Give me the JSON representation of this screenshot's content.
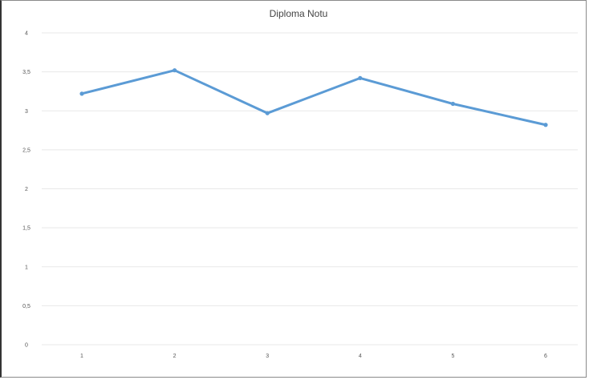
{
  "chart_data": {
    "type": "line",
    "title": "Diploma Notu",
    "xlabel": "",
    "ylabel": "",
    "categories": [
      "1",
      "2",
      "3",
      "4",
      "5",
      "6"
    ],
    "series": [
      {
        "values": [
          3.22,
          3.52,
          2.97,
          3.42,
          3.09,
          2.82
        ]
      }
    ],
    "ylim": [
      0,
      4
    ],
    "yticks": [
      0,
      0.5,
      1,
      1.5,
      2,
      2.5,
      3,
      3.5,
      4
    ],
    "yticklabels": [
      "0",
      "0,5",
      "1",
      "1,5",
      "2",
      "2,5",
      "3",
      "3,5",
      "4"
    ],
    "grid": true,
    "legend": "none",
    "series_color": "#5b9bd5"
  }
}
